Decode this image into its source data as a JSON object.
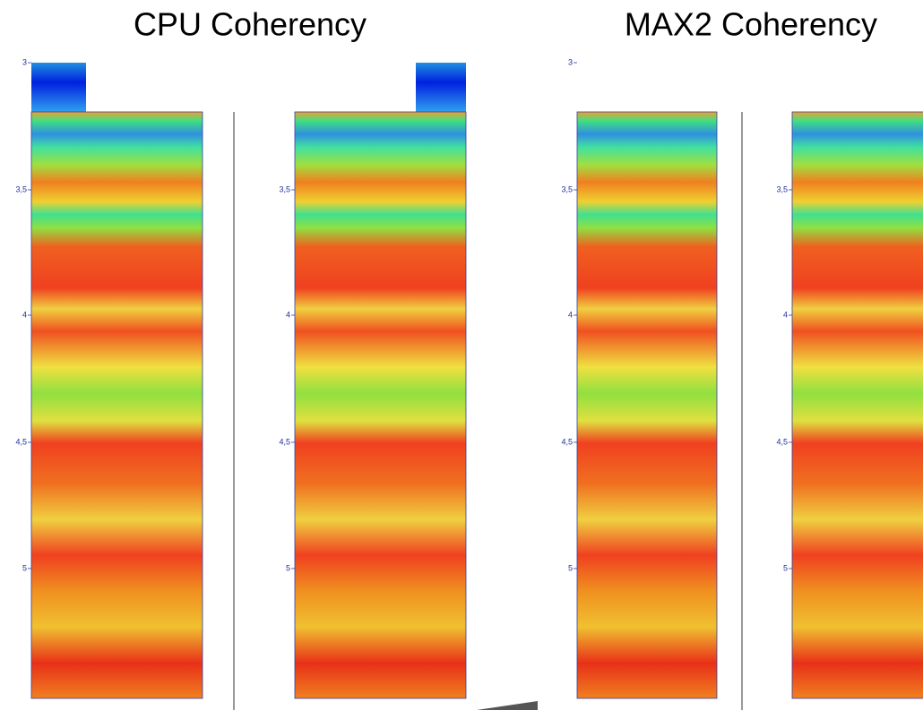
{
  "titles": [
    "CPU Coherency",
    "MAX2 Coherency"
  ],
  "panels": [
    {
      "ticks": [
        "3",
        "3,5",
        "4",
        "4,5",
        "5"
      ]
    },
    {
      "ticks": [
        "3,5",
        "4",
        "4,5",
        "5"
      ]
    },
    {
      "ticks": [
        "3",
        "3,5",
        "4",
        "4,5",
        "5"
      ]
    },
    {
      "ticks": [
        "3,5",
        "4",
        "4,5",
        "5"
      ]
    }
  ]
}
